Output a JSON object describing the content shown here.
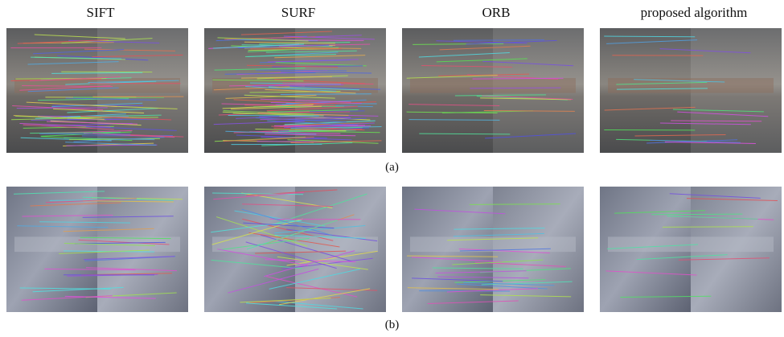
{
  "columns": [
    "SIFT",
    "SURF",
    "ORB",
    "proposed algorithm"
  ],
  "rows": [
    {
      "label": "(a)"
    },
    {
      "label": "(b)"
    }
  ]
}
